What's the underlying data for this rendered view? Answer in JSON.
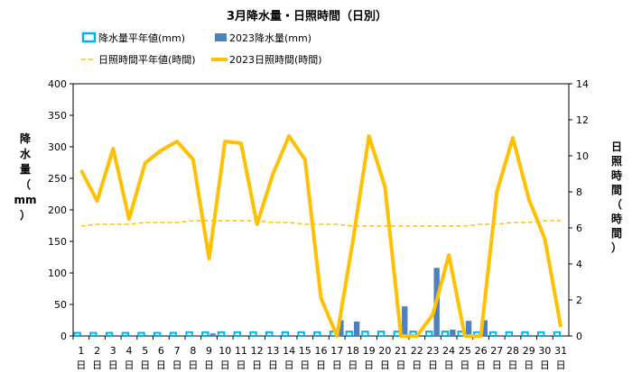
{
  "chart_data": {
    "type": "bar+line",
    "title": "3月降水量・日照時間（日別）",
    "categories": [
      "1",
      "2",
      "3",
      "4",
      "5",
      "6",
      "7",
      "8",
      "9",
      "10",
      "11",
      "12",
      "13",
      "14",
      "15",
      "16",
      "17",
      "18",
      "19",
      "20",
      "21",
      "22",
      "23",
      "24",
      "25",
      "26",
      "27",
      "28",
      "29",
      "30",
      "31"
    ],
    "day_suffix": "日",
    "y_left": {
      "label_chars": [
        "降",
        "水",
        "量",
        "（",
        "mm",
        "）"
      ],
      "ylim": [
        0,
        400
      ],
      "ticks": [
        0,
        50,
        100,
        150,
        200,
        250,
        300,
        350,
        400
      ]
    },
    "y_right": {
      "label_chars": [
        "日",
        "照",
        "時",
        "間",
        "（",
        "時",
        "間",
        "）"
      ],
      "ylim": [
        0,
        14
      ],
      "ticks": [
        0,
        2,
        4,
        6,
        8,
        10,
        12,
        14
      ]
    },
    "legend": {
      "normal_precip": "降水量平年値(mm)",
      "precip_2023": "2023降水量(mm)",
      "normal_sunshine": "日照時間平年値(時間)",
      "sunshine_2023": "2023日照時間(時間)"
    },
    "series": [
      {
        "name": "降水量平年値(mm)",
        "axis": "left",
        "kind": "bar-outline",
        "values": [
          5,
          5,
          5,
          5,
          5,
          5,
          5,
          6,
          6,
          6,
          6,
          6,
          6,
          6,
          6,
          6,
          7,
          7,
          7,
          7,
          7,
          7,
          7,
          7,
          7,
          6,
          6,
          6,
          6,
          6,
          6
        ]
      },
      {
        "name": "2023降水量(mm)",
        "axis": "left",
        "kind": "bar",
        "values": [
          0,
          0,
          0,
          0,
          0,
          0,
          0,
          0,
          4,
          0,
          0,
          0,
          1,
          0,
          0,
          0,
          25,
          23,
          0,
          0,
          47,
          0,
          108,
          10,
          24,
          25,
          0,
          0,
          0,
          0,
          0
        ]
      },
      {
        "name": "日照時間平年値(時間)",
        "axis": "right",
        "kind": "dashed-line",
        "values": [
          6.1,
          6.2,
          6.2,
          6.2,
          6.3,
          6.3,
          6.3,
          6.4,
          6.4,
          6.4,
          6.4,
          6.4,
          6.3,
          6.3,
          6.2,
          6.2,
          6.2,
          6.1,
          6.1,
          6.1,
          6.1,
          6.1,
          6.1,
          6.1,
          6.1,
          6.2,
          6.2,
          6.3,
          6.3,
          6.4,
          6.4
        ]
      },
      {
        "name": "2023日照時間(時間)",
        "axis": "right",
        "kind": "line",
        "values": [
          9.2,
          7.5,
          10.4,
          6.5,
          9.6,
          10.3,
          10.8,
          9.8,
          4.3,
          10.8,
          10.7,
          6.2,
          9.0,
          11.1,
          9.8,
          2.1,
          0.0,
          5.3,
          11.1,
          8.3,
          0.0,
          0.0,
          1.2,
          4.5,
          0.0,
          0.0,
          8.0,
          11.0,
          7.6,
          5.4,
          0.5
        ]
      }
    ],
    "colors": {
      "normal_precip": "#00b0f0",
      "precip_2023": "#4f81bd",
      "normal_sunshine": "#ffc000",
      "sunshine_2023": "#ffc000",
      "grid": "#000000"
    },
    "grid": false,
    "legend_position": "top"
  }
}
